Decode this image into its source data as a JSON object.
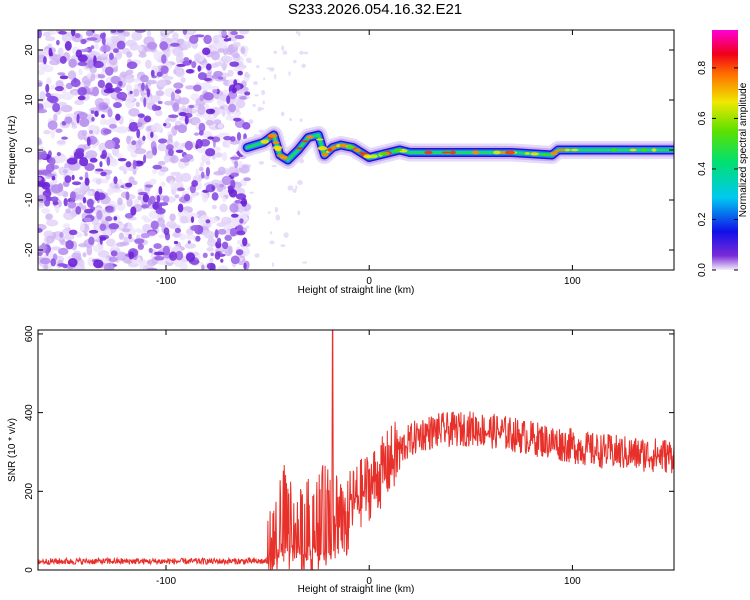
{
  "title": "S233.2026.054.16.32.E21",
  "chart_data": [
    {
      "type": "heatmap",
      "name": "spectrogram",
      "xlabel": "Height of straight line (km)",
      "ylabel": "Frequency (Hz)",
      "xlim": [
        -163,
        150
      ],
      "ylim": [
        -24,
        24
      ],
      "xticks": [
        -100,
        0,
        100
      ],
      "yticks": [
        -20,
        -10,
        0,
        10,
        20
      ],
      "xtick_labels": [
        "-100",
        "0",
        "100"
      ],
      "ytick_labels": [
        "-20",
        "-10",
        "0",
        "10",
        "20"
      ],
      "noise_region_x": [
        -163,
        -60
      ],
      "signal_track": [
        {
          "x": -60,
          "y": 0.5
        },
        {
          "x": -52,
          "y": 1.5
        },
        {
          "x": -47,
          "y": 3
        },
        {
          "x": -44,
          "y": -1
        },
        {
          "x": -40,
          "y": -2
        },
        {
          "x": -35,
          "y": 0
        },
        {
          "x": -30,
          "y": 2.5
        },
        {
          "x": -25,
          "y": 3
        },
        {
          "x": -22,
          "y": -1
        },
        {
          "x": -18,
          "y": 0.5
        },
        {
          "x": -14,
          "y": 1
        },
        {
          "x": -8,
          "y": 0.5
        },
        {
          "x": -4,
          "y": -0.5
        },
        {
          "x": 0,
          "y": -1.5
        },
        {
          "x": 5,
          "y": -1
        },
        {
          "x": 10,
          "y": -0.5
        },
        {
          "x": 15,
          "y": 0
        },
        {
          "x": 20,
          "y": -0.5
        },
        {
          "x": 40,
          "y": -0.5
        },
        {
          "x": 70,
          "y": -0.5
        },
        {
          "x": 90,
          "y": -1
        },
        {
          "x": 93,
          "y": 0
        },
        {
          "x": 120,
          "y": 0
        },
        {
          "x": 150,
          "y": 0
        }
      ]
    },
    {
      "type": "line",
      "name": "snr",
      "xlabel": "Height of straight line (km)",
      "ylabel": "SNR (10 * v/v)",
      "xlim": [
        -163,
        150
      ],
      "ylim": [
        0,
        610
      ],
      "xticks": [
        -100,
        0,
        100
      ],
      "yticks": [
        0,
        200,
        400,
        600
      ],
      "xtick_labels": [
        "-100",
        "0",
        "100"
      ],
      "ytick_labels": [
        "0",
        "200",
        "400",
        "600"
      ],
      "color": "#e8302a",
      "envelope": [
        {
          "x": -163,
          "y": 22
        },
        {
          "x": -50,
          "y": 22
        },
        {
          "x": -46,
          "y": 60
        },
        {
          "x": -42,
          "y": 140
        },
        {
          "x": -38,
          "y": 110
        },
        {
          "x": -34,
          "y": 80
        },
        {
          "x": -28,
          "y": 120
        },
        {
          "x": -22,
          "y": 140
        },
        {
          "x": -16,
          "y": 150
        },
        {
          "x": -12,
          "y": 150
        },
        {
          "x": -5,
          "y": 190
        },
        {
          "x": 0,
          "y": 215
        },
        {
          "x": 5,
          "y": 240
        },
        {
          "x": 10,
          "y": 275
        },
        {
          "x": 18,
          "y": 320
        },
        {
          "x": 25,
          "y": 345
        },
        {
          "x": 35,
          "y": 355
        },
        {
          "x": 50,
          "y": 360
        },
        {
          "x": 65,
          "y": 350
        },
        {
          "x": 80,
          "y": 335
        },
        {
          "x": 95,
          "y": 320
        },
        {
          "x": 110,
          "y": 305
        },
        {
          "x": 130,
          "y": 295
        },
        {
          "x": 150,
          "y": 290
        }
      ],
      "spike": {
        "x": -18,
        "y": 610
      }
    }
  ],
  "colorbar": {
    "label": "Normalized spectral amplitude",
    "ticks": [
      0.0,
      0.2,
      0.4,
      0.6,
      0.8
    ],
    "tick_labels": [
      "0.0",
      "0.2",
      "0.4",
      "0.6",
      "0.8"
    ],
    "range": [
      0,
      0.95
    ]
  }
}
